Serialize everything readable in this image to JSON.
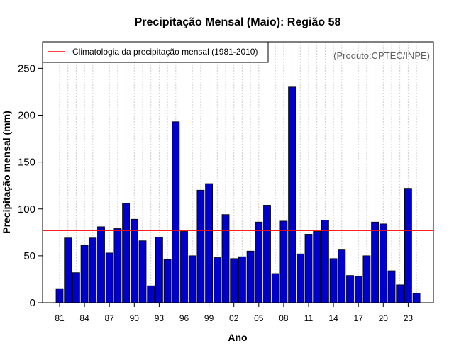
{
  "chart_data": {
    "type": "bar",
    "title": "Precipitação Mensal (Maio): Região 58",
    "xlabel": "Ano",
    "ylabel": "Precipitação mensal (mm)",
    "credit": "(Produto:CPTEC/INPE)",
    "ylim": [
      0,
      280
    ],
    "y_ticks": [
      0,
      50,
      100,
      150,
      200,
      250
    ],
    "x_tick_labels": [
      {
        "index": 0,
        "label": "81"
      },
      {
        "index": 3,
        "label": "84"
      },
      {
        "index": 6,
        "label": "87"
      },
      {
        "index": 9,
        "label": "90"
      },
      {
        "index": 12,
        "label": "93"
      },
      {
        "index": 15,
        "label": "96"
      },
      {
        "index": 18,
        "label": "99"
      },
      {
        "index": 21,
        "label": "02"
      },
      {
        "index": 24,
        "label": "05"
      },
      {
        "index": 27,
        "label": "08"
      },
      {
        "index": 30,
        "label": "11"
      },
      {
        "index": 33,
        "label": "14"
      },
      {
        "index": 36,
        "label": "17"
      },
      {
        "index": 39,
        "label": "20"
      },
      {
        "index": 42,
        "label": "23"
      }
    ],
    "categories": [
      "1981",
      "1982",
      "1983",
      "1984",
      "1985",
      "1986",
      "1987",
      "1988",
      "1989",
      "1990",
      "1991",
      "1992",
      "1993",
      "1994",
      "1995",
      "1996",
      "1997",
      "1998",
      "1999",
      "2000",
      "2001",
      "2002",
      "2003",
      "2004",
      "2005",
      "2006",
      "2007",
      "2008",
      "2009",
      "2010",
      "2011",
      "2012",
      "2013",
      "2014",
      "2015",
      "2016",
      "2017",
      "2018",
      "2019",
      "2020",
      "2021",
      "2022",
      "2023",
      "2024"
    ],
    "values": [
      15,
      69,
      32,
      61,
      69,
      81,
      53,
      79,
      106,
      89,
      66,
      18,
      70,
      46,
      193,
      76,
      50,
      120,
      127,
      48,
      94,
      47,
      49,
      55,
      86,
      104,
      31,
      87,
      230,
      52,
      73,
      76,
      88,
      47,
      57,
      29,
      28,
      50,
      86,
      84,
      34,
      19,
      122,
      10
    ],
    "bar_color": "#0000cc",
    "climatology": {
      "label": "Climatologia da precipitação mensal (1981-2010)",
      "value": 77,
      "color": "#ff0000"
    },
    "legend_position": "top-left"
  }
}
